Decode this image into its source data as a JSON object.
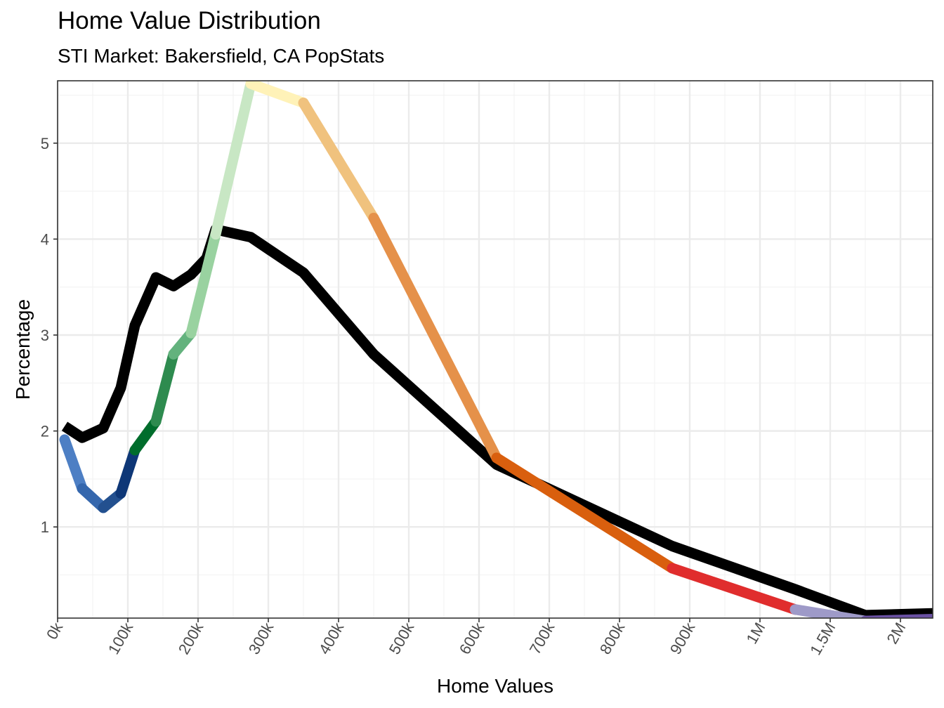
{
  "chart_data": {
    "type": "line",
    "title": "Home Value Distribution",
    "subtitle": "STI Market: Bakersfield, CA PopStats",
    "xlabel": "Home Values",
    "ylabel": "Percentage",
    "x_ticks": [
      "0k",
      "100k",
      "200k",
      "300k",
      "400k",
      "500k",
      "600k",
      "700k",
      "800k",
      "900k",
      "1M",
      "1.5M",
      "2M"
    ],
    "y_ticks": [
      1,
      2,
      3,
      4,
      5
    ],
    "ylim": [
      0.05,
      5.65
    ],
    "grid": true,
    "legend": "none",
    "x_scale_note": "tick labels are evenly spaced; axis is piecewise (0k–1M linear, then 1.5M, 2M)",
    "series": [
      {
        "color": "#000000",
        "x": [
          "10k",
          "35k",
          "65k",
          "90k",
          "110k",
          "140k",
          "165k",
          "190k",
          "212k",
          "225k",
          "275k",
          "350k",
          "450k",
          "625k",
          "875k",
          "1.25M",
          "1.75M",
          "2.25M"
        ],
        "y": [
          2.05,
          1.93,
          2.03,
          2.45,
          3.1,
          3.6,
          3.51,
          3.63,
          3.8,
          4.1,
          4.02,
          3.65,
          2.8,
          1.65,
          0.8,
          0.35,
          0.08,
          0.1
        ]
      },
      {
        "segment_colors": [
          "#4d7fc4",
          "#3567ad",
          "#23508f",
          "#0e3777",
          "#006d2c",
          "#2e8b4f",
          "#63b27d",
          "#99d2a0",
          "#c8e7c4",
          "#fff2b8",
          "#f0c27e",
          "#e5914a",
          "#d95f0e",
          "#e02d2d",
          "#9e9ac8",
          "#6a51a3"
        ],
        "x": [
          "10k",
          "35k",
          "65k",
          "90k",
          "110k",
          "140k",
          "165k",
          "190k",
          "225k",
          "275k",
          "350k",
          "450k",
          "625k",
          "875k",
          "1.25M",
          "1.75M",
          "2.25M"
        ],
        "y": [
          1.91,
          1.4,
          1.2,
          1.35,
          1.8,
          2.1,
          2.8,
          3.02,
          4.05,
          5.62,
          5.42,
          4.22,
          1.72,
          0.57,
          0.14,
          0.02,
          0.04
        ]
      }
    ]
  }
}
